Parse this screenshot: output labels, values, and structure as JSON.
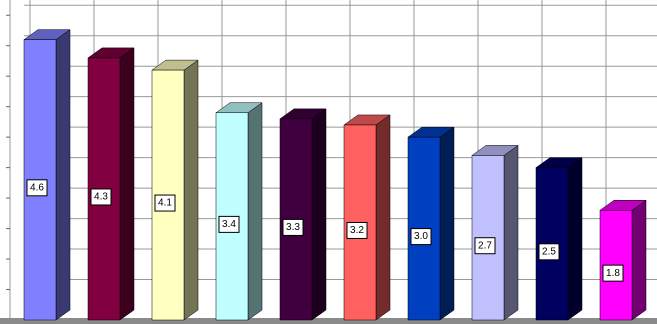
{
  "chart_data": {
    "type": "bar3d",
    "values": [
      4.6,
      4.3,
      4.1,
      3.4,
      3.3,
      3.2,
      3,
      2.7,
      2.5,
      1.8
    ],
    "value_labels": [
      "4.6",
      "4.3",
      "4.1",
      "3.4",
      "3.3",
      "3.2",
      "3.0",
      "2.7",
      "2.5",
      "1.8"
    ],
    "colors": [
      "#8080ff",
      "#800040",
      "#ffffc0",
      "#c0ffff",
      "#400040",
      "#ff6060",
      "#0040c0",
      "#c0c0ff",
      "#000060",
      "#ff00ff"
    ],
    "ylim": [
      0,
      5.25
    ],
    "yticks": [
      0.5,
      1,
      1.5,
      2,
      2.5,
      3,
      3.5,
      4,
      4.5,
      5
    ],
    "grid": true
  }
}
